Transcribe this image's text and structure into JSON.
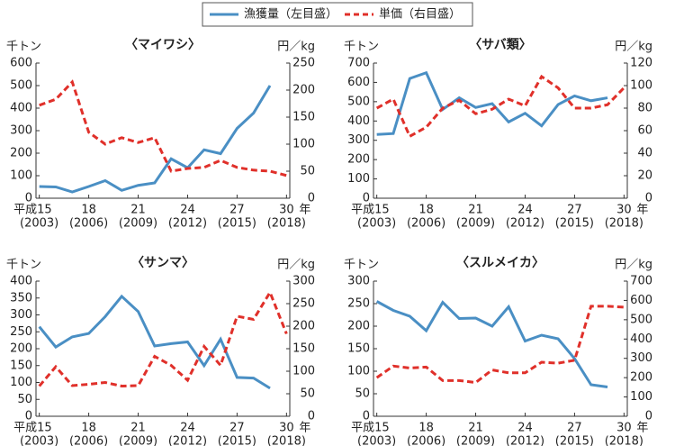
{
  "legend": {
    "entries": [
      {
        "name": "漁獲量（左目盛）",
        "color": "#4a8fc4",
        "dash": false
      },
      {
        "name": "単価（右目盛）",
        "color": "#e0302a",
        "dash": true
      }
    ]
  },
  "chart_data": [
    {
      "type": "line",
      "title": "〈マイワシ〉",
      "ylabel": "千トン",
      "y2label": "円／kg",
      "xlabel": "年",
      "x": [
        15,
        16,
        17,
        18,
        19,
        20,
        21,
        22,
        23,
        24,
        25,
        26,
        27,
        28,
        29,
        30
      ],
      "xlim": [
        14.8,
        30.2
      ],
      "xticks": [
        {
          "value": 15,
          "label": "平成15",
          "year": "(2003)"
        },
        {
          "value": 18,
          "label": "18",
          "year": "(2006)"
        },
        {
          "value": 21,
          "label": "21",
          "year": "(2009)"
        },
        {
          "value": 24,
          "label": "24",
          "year": "(2012)"
        },
        {
          "value": 27,
          "label": "27",
          "year": "(2015)"
        },
        {
          "value": 30,
          "label": "30",
          "year": "(2018)"
        }
      ],
      "ylim": [
        0,
        600
      ],
      "yticks": [
        0,
        100,
        200,
        300,
        400,
        500,
        600
      ],
      "y2lim": [
        0,
        250
      ],
      "y2ticks": [
        0,
        50,
        100,
        150,
        200,
        250
      ],
      "series": [
        {
          "color": "#4a8fc4",
          "values": [
            52,
            50,
            28,
            52,
            78,
            35,
            57,
            68,
            175,
            135,
            215,
            198,
            310,
            378,
            500,
            null
          ]
        },
        {
          "color": "#e0302a",
          "dash": true,
          "axis": "y2",
          "values": [
            172,
            183,
            215,
            122,
            100,
            112,
            103,
            112,
            50,
            55,
            57,
            70,
            57,
            52,
            50,
            42
          ]
        }
      ]
    },
    {
      "type": "line",
      "title": "〈サバ類〉",
      "ylabel": "千トン",
      "y2label": "円／kg",
      "xlabel": "年",
      "x": [
        15,
        16,
        17,
        18,
        19,
        20,
        21,
        22,
        23,
        24,
        25,
        26,
        27,
        28,
        29,
        30
      ],
      "xlim": [
        14.8,
        30.2
      ],
      "xticks": [
        {
          "value": 15,
          "label": "平成15",
          "year": "(2003)"
        },
        {
          "value": 18,
          "label": "18",
          "year": "(2006)"
        },
        {
          "value": 21,
          "label": "21",
          "year": "(2009)"
        },
        {
          "value": 24,
          "label": "24",
          "year": "(2012)"
        },
        {
          "value": 27,
          "label": "27",
          "year": "(2015)"
        },
        {
          "value": 30,
          "label": "30",
          "year": "(2018)"
        }
      ],
      "ylim": [
        0,
        700
      ],
      "yticks": [
        0,
        100,
        200,
        300,
        400,
        500,
        600,
        700
      ],
      "y2lim": [
        0,
        120
      ],
      "y2ticks": [
        0,
        20,
        40,
        60,
        80,
        100,
        120
      ],
      "series": [
        {
          "color": "#4a8fc4",
          "values": [
            330,
            335,
            620,
            650,
            460,
            520,
            470,
            490,
            395,
            440,
            375,
            485,
            530,
            505,
            520,
            null
          ]
        },
        {
          "color": "#e0302a",
          "dash": true,
          "axis": "y2",
          "values": [
            80,
            88,
            55,
            63,
            80,
            87,
            75,
            79,
            88,
            82,
            108,
            98,
            80,
            80,
            83,
            98
          ]
        }
      ]
    },
    {
      "type": "line",
      "title": "〈サンマ〉",
      "ylabel": "千トン",
      "y2label": "円／kg",
      "xlabel": "年",
      "x": [
        15,
        16,
        17,
        18,
        19,
        20,
        21,
        22,
        23,
        24,
        25,
        26,
        27,
        28,
        29,
        30
      ],
      "xlim": [
        14.8,
        30.2
      ],
      "xticks": [
        {
          "value": 15,
          "label": "平成15",
          "year": "(2003)"
        },
        {
          "value": 18,
          "label": "18",
          "year": "(2006)"
        },
        {
          "value": 21,
          "label": "21",
          "year": "(2009)"
        },
        {
          "value": 24,
          "label": "24",
          "year": "(2012)"
        },
        {
          "value": 27,
          "label": "27",
          "year": "(2015)"
        },
        {
          "value": 30,
          "label": "30",
          "year": "(2018)"
        }
      ],
      "ylim": [
        0,
        400
      ],
      "yticks": [
        0,
        50,
        100,
        150,
        200,
        250,
        300,
        350,
        400
      ],
      "y2lim": [
        0,
        300
      ],
      "y2ticks": [
        0,
        50,
        100,
        150,
        200,
        250,
        300
      ],
      "series": [
        {
          "color": "#4a8fc4",
          "values": [
            265,
            205,
            235,
            245,
            295,
            355,
            310,
            208,
            215,
            220,
            150,
            228,
            115,
            113,
            83,
            null
          ]
        },
        {
          "color": "#e0302a",
          "dash": true,
          "axis": "y2",
          "values": [
            67,
            110,
            68,
            71,
            75,
            67,
            68,
            133,
            113,
            80,
            155,
            113,
            222,
            215,
            275,
            183
          ]
        }
      ]
    },
    {
      "type": "line",
      "title": "〈スルメイカ〉",
      "ylabel": "千トン",
      "y2label": "円／kg",
      "xlabel": "年",
      "x": [
        15,
        16,
        17,
        18,
        19,
        20,
        21,
        22,
        23,
        24,
        25,
        26,
        27,
        28,
        29,
        30
      ],
      "xlim": [
        14.8,
        30.2
      ],
      "xticks": [
        {
          "value": 15,
          "label": "平成15",
          "year": "(2003)"
        },
        {
          "value": 18,
          "label": "18",
          "year": "(2006)"
        },
        {
          "value": 21,
          "label": "21",
          "year": "(2009)"
        },
        {
          "value": 24,
          "label": "24",
          "year": "(2012)"
        },
        {
          "value": 27,
          "label": "27",
          "year": "(2015)"
        },
        {
          "value": 30,
          "label": "30",
          "year": "(2018)"
        }
      ],
      "ylim": [
        0,
        300
      ],
      "yticks": [
        0,
        50,
        100,
        150,
        200,
        250,
        300
      ],
      "y2lim": [
        0,
        700
      ],
      "y2ticks": [
        0,
        100,
        200,
        300,
        400,
        500,
        600,
        700
      ],
      "series": [
        {
          "color": "#4a8fc4",
          "values": [
            255,
            235,
            222,
            190,
            253,
            217,
            218,
            200,
            243,
            167,
            180,
            172,
            128,
            70,
            65,
            null
          ]
        },
        {
          "color": "#e0302a",
          "dash": true,
          "axis": "y2",
          "values": [
            200,
            260,
            250,
            255,
            185,
            185,
            175,
            240,
            225,
            225,
            280,
            275,
            290,
            570,
            570,
            565
          ]
        }
      ]
    }
  ]
}
